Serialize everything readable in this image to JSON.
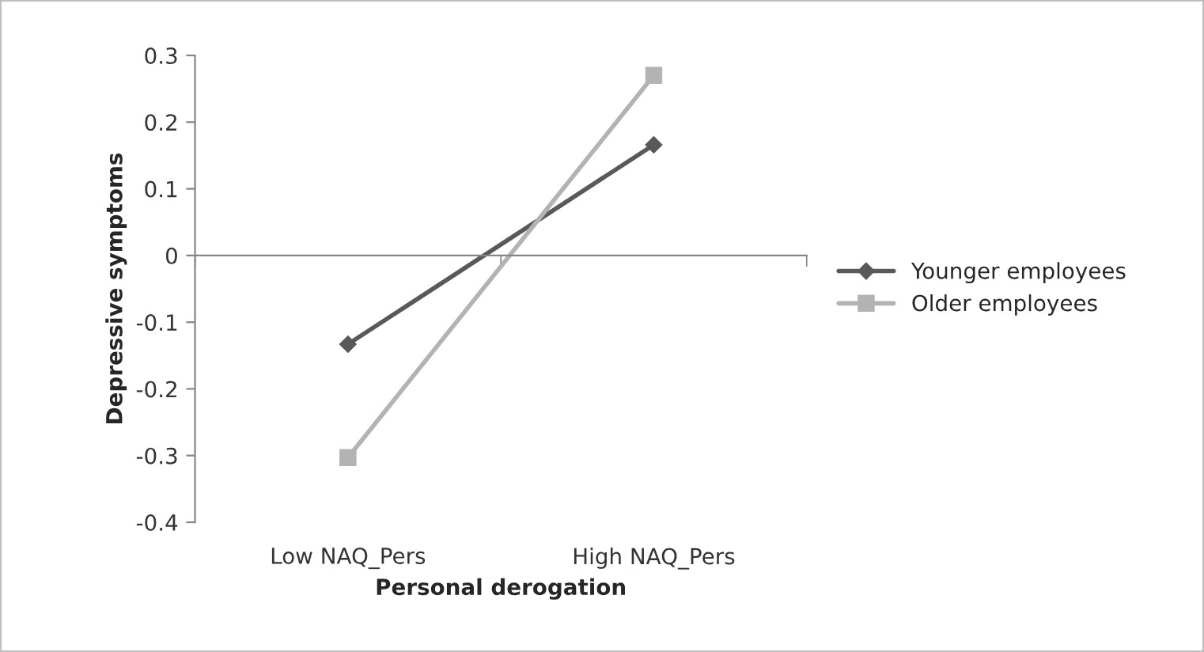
{
  "chart_data": {
    "type": "line",
    "xlabel": "Personal derogation",
    "ylabel": "Depressive symptoms",
    "categories": [
      "Low NAQ_Pers",
      "High NAQ_Pers"
    ],
    "series": [
      {
        "name": "Younger employees",
        "color": "#595959",
        "marker": "diamond",
        "values": [
          -0.133,
          0.166
        ]
      },
      {
        "name": "Older employees",
        "color": "#b3b3b3",
        "marker": "square",
        "values": [
          -0.303,
          0.27
        ]
      }
    ],
    "ylim": [
      -0.4,
      0.3
    ],
    "yticks": [
      -0.4,
      -0.3,
      -0.2,
      -0.1,
      0,
      0.1,
      0.2,
      0.3
    ],
    "legend": "right",
    "line_style": "solid"
  }
}
